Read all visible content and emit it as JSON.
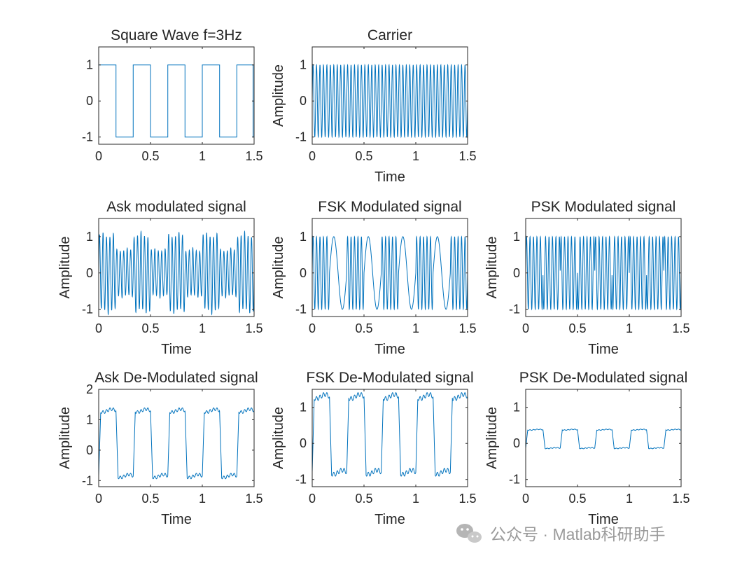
{
  "line_color": "#0072BD",
  "axis_color": "#262626",
  "watermark": {
    "icon": "wechat-icon",
    "text": "公众号 · Matlab科研助手"
  },
  "chart_data": [
    {
      "type": "line",
      "title": "Square Wave f=3Hz",
      "xlabel": "",
      "ylabel": "",
      "xlim": [
        0,
        1.5
      ],
      "ylim": [
        -1.2,
        1.5
      ],
      "xticks": [
        "0",
        "0.5",
        "1",
        "1.5"
      ],
      "yticks": [
        "-1",
        "0",
        "1"
      ],
      "series": [
        {
          "x": [
            0,
            0.167,
            0.167,
            0.333,
            0.333,
            0.5,
            0.5,
            0.667,
            0.667,
            0.833,
            0.833,
            1.0,
            1.0,
            1.167,
            1.167,
            1.333,
            1.333,
            1.49,
            1.49,
            1.5
          ],
          "y": [
            1,
            1,
            -1,
            -1,
            1,
            1,
            -1,
            -1,
            1,
            1,
            -1,
            -1,
            1,
            1,
            -1,
            -1,
            1,
            1,
            -1,
            -1
          ]
        }
      ]
    },
    {
      "type": "line",
      "title": "Carrier",
      "xlabel": "Time",
      "ylabel": "Amplitude",
      "xlim": [
        0,
        1.5
      ],
      "ylim": [
        -1.2,
        1.5
      ],
      "xticks": [
        "0",
        "0.5",
        "1",
        "1.5"
      ],
      "yticks": [
        "-1",
        "0",
        "1"
      ],
      "signal": {
        "kind": "sine",
        "frequency_hz": 30,
        "amplitude": 1
      }
    },
    {
      "type": "line",
      "title": "Ask modulated signal",
      "xlabel": "Time",
      "ylabel": "Amplitude",
      "xlim": [
        0,
        1.5
      ],
      "ylim": [
        -1.2,
        1.5
      ],
      "xticks": [
        "0",
        "0.5",
        "1",
        "1.5"
      ],
      "yticks": [
        "-1",
        "0",
        "1"
      ],
      "signal": {
        "kind": "ask",
        "frequency_hz": 30,
        "high_amplitude": 1.15,
        "low_amplitude": 0.7,
        "bit_rate_hz": 3
      }
    },
    {
      "type": "line",
      "title": "FSK Modulated signal",
      "xlabel": "Time",
      "ylabel": "Amplitude",
      "xlim": [
        0,
        1.5
      ],
      "ylim": [
        -1.2,
        1.5
      ],
      "xticks": [
        "0",
        "0.5",
        "1",
        "1.5"
      ],
      "yticks": [
        "-1",
        "0",
        "1"
      ],
      "signal": {
        "kind": "fsk",
        "frequency_high_hz": 30,
        "frequency_low_hz": 6,
        "amplitude": 1,
        "bit_rate_hz": 3
      }
    },
    {
      "type": "line",
      "title": "PSK Modulated signal",
      "xlabel": "Time",
      "ylabel": "Amplitude",
      "xlim": [
        0,
        1.5
      ],
      "ylim": [
        -1.2,
        1.5
      ],
      "xticks": [
        "0",
        "0.5",
        "1",
        "1.5"
      ],
      "yticks": [
        "-1",
        "0",
        "1"
      ],
      "signal": {
        "kind": "psk",
        "frequency_hz": 30,
        "amplitude": 1,
        "bit_rate_hz": 3
      }
    },
    {
      "type": "line",
      "title": "Ask De-Modulated signal",
      "xlabel": "Time",
      "ylabel": "Amplitude",
      "xlim": [
        0,
        1.5
      ],
      "ylim": [
        -1.2,
        2
      ],
      "xticks": [
        "0",
        "0.5",
        "1",
        "1.5"
      ],
      "yticks": [
        "-1",
        "0",
        "1",
        "2"
      ],
      "signal": {
        "kind": "demod",
        "high_level": 1.3,
        "low_level": -0.85,
        "ripple": 0.1,
        "bit_rate_hz": 3
      }
    },
    {
      "type": "line",
      "title": "FSK De-Modulated signal",
      "xlabel": "Time",
      "ylabel": "Amplitude",
      "xlim": [
        0,
        1.5
      ],
      "ylim": [
        -1.2,
        1.5
      ],
      "xticks": [
        "0",
        "0.5",
        "1",
        "1.5"
      ],
      "yticks": [
        "-1",
        "0",
        "1"
      ],
      "signal": {
        "kind": "demod",
        "high_level": 1.3,
        "low_level": -0.8,
        "ripple": 0.12,
        "bit_rate_hz": 3
      }
    },
    {
      "type": "line",
      "title": "PSK De-Modulated signal",
      "xlabel": "Time",
      "ylabel": "Amplitude",
      "xlim": [
        0,
        1.5
      ],
      "ylim": [
        -1.2,
        1.5
      ],
      "xticks": [
        "0",
        "0.5",
        "1",
        "1.5"
      ],
      "yticks": [
        "-1",
        "0",
        "1"
      ],
      "signal": {
        "kind": "demod",
        "high_level": 0.38,
        "low_level": -0.13,
        "ripple": 0.02,
        "bit_rate_hz": 3
      }
    }
  ]
}
